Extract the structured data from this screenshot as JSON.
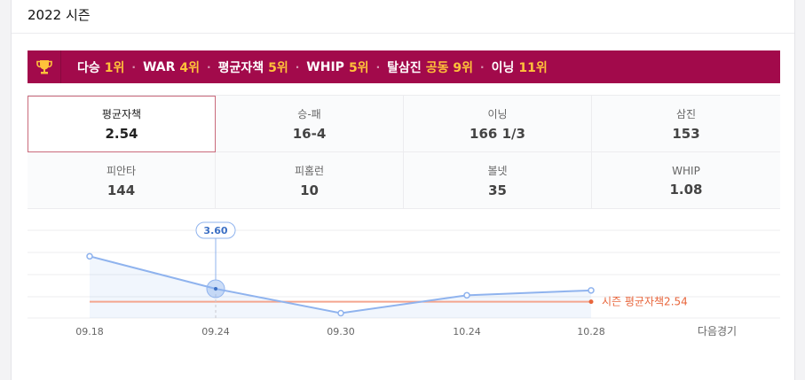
{
  "season": {
    "title": "2022 시즌"
  },
  "rankings": [
    {
      "label": "다승",
      "value": "1위"
    },
    {
      "label": "WAR",
      "value": "4위"
    },
    {
      "label": "평균자책",
      "value": "5위"
    },
    {
      "label": "WHIP",
      "value": "5위"
    },
    {
      "label": "탈삼진",
      "value": "공동 9위"
    },
    {
      "label": "이닝",
      "value": "11위"
    }
  ],
  "stats": [
    {
      "label": "평균자책",
      "value": "2.54",
      "selected": true
    },
    {
      "label": "승-패",
      "value": "16-4"
    },
    {
      "label": "이닝",
      "value": "166 1/3"
    },
    {
      "label": "삼진",
      "value": "153"
    },
    {
      "label": "피안타",
      "value": "144"
    },
    {
      "label": "피홈런",
      "value": "10"
    },
    {
      "label": "볼넷",
      "value": "35"
    },
    {
      "label": "WHIP",
      "value": "1.08"
    }
  ],
  "colors": {
    "banner": "#a20a4b",
    "rank_value": "#ffc23a",
    "line": "#8fb3ee",
    "average": "#e8663c"
  },
  "chart_data": {
    "type": "line",
    "categories": [
      "09.18",
      "09.24",
      "09.30",
      "10.24",
      "10.28"
    ],
    "values": [
      4.6,
      3.6,
      2.85,
      3.4,
      3.55
    ],
    "ylim": [
      2.7,
      5.4
    ],
    "average": {
      "value": 2.54,
      "plot_at": 3.2,
      "label": "시즌 평균자책",
      "value_label": "2.54"
    },
    "highlight": {
      "index": 1,
      "label": "3.60"
    },
    "next_label": "다음경기",
    "grid": true
  }
}
